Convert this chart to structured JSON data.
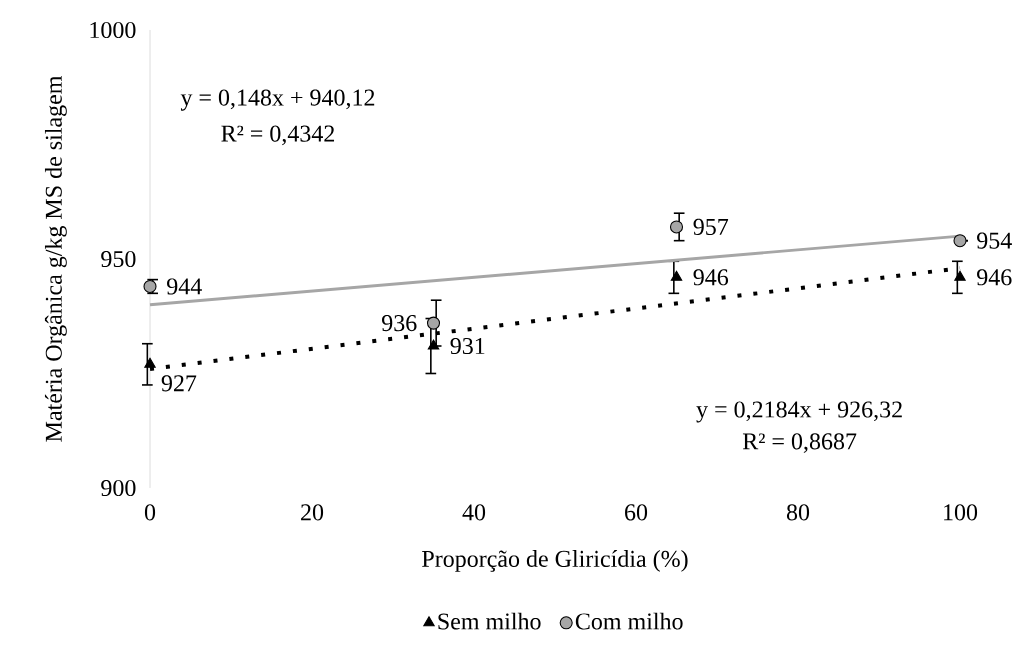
{
  "chart_data": {
    "type": "scatter",
    "xlabel": "Proporção de Gliricídia (%)",
    "ylabel": "Matéria Orgânica g/kg MS de silagem",
    "xlim": [
      0,
      100
    ],
    "ylim": [
      900,
      1000
    ],
    "xticks": [
      0,
      20,
      40,
      60,
      80,
      100
    ],
    "yticks": [
      900,
      950,
      1000
    ],
    "grid": false,
    "legend": "bottom",
    "series": [
      {
        "name": "Sem milho",
        "marker": "triangle",
        "color": "#000000",
        "x": [
          0,
          35,
          65,
          100
        ],
        "values": [
          927,
          931,
          946,
          946
        ],
        "errors": [
          4.5,
          6,
          3.5,
          3.5
        ],
        "value_labels": [
          "927",
          "931",
          "946",
          "946"
        ]
      },
      {
        "name": "Com milho",
        "marker": "circle",
        "color": "#a6a6a6",
        "x": [
          0,
          35,
          65,
          100
        ],
        "values": [
          944,
          936,
          957,
          954
        ],
        "errors": [
          1.5,
          5,
          3,
          null
        ],
        "value_labels": [
          "944",
          "936",
          "957",
          "954"
        ]
      },
      {
        "type": "line",
        "line_style": "solid",
        "marker": "none",
        "color": "#a6a6a6",
        "x": [
          0,
          100
        ],
        "values": [
          940,
          955
        ]
      },
      {
        "type": "line",
        "line_style": "dotted",
        "marker": "none",
        "color": "#000000",
        "x": [
          0,
          100
        ],
        "values": [
          926,
          948
        ]
      }
    ],
    "annotations": [
      "y = 0,148x + 940,12",
      "R² = 0,4342",
      "y = 0,2184x + 926,32",
      "R² = 0,8687"
    ]
  }
}
